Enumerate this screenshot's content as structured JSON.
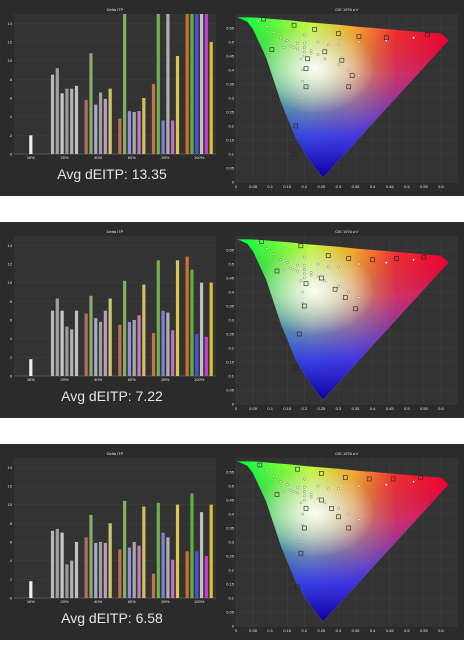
{
  "panels": [
    {
      "avg_label": "Avg dEITP: 13.35",
      "chart_data": [
        {
          "type": "bar",
          "title": "Delta ITP",
          "ylim": [
            0,
            15
          ],
          "yticks": [
            0,
            2,
            4,
            6,
            8,
            10,
            12,
            14
          ],
          "categories": [
            "16%",
            "20%",
            "40%",
            "60%",
            "80%",
            "100%"
          ],
          "groups": [
            {
              "label": "16%",
              "values": [
                2.0
              ]
            },
            {
              "label": "20%",
              "values": [
                8.5,
                9.2,
                6.5,
                7.0,
                7.0,
                7.3
              ]
            },
            {
              "label": "40%",
              "values": [
                5.8,
                10.8,
                5.3,
                6.6,
                5.9,
                7.0
              ]
            },
            {
              "label": "60%",
              "values": [
                3.8,
                16.0,
                4.6,
                4.5,
                4.6,
                6.0
              ]
            },
            {
              "label": "80%",
              "values": [
                7.5,
                16.0,
                3.6,
                16.0,
                3.6,
                10.5
              ]
            },
            {
              "label": "100%",
              "values": [
                16.0,
                16.0,
                16.0,
                16.0,
                16.0,
                12.0
              ]
            }
          ]
        },
        {
          "type": "scatter",
          "title": "CIE 1976 u'v'",
          "xlim": [
            0,
            0.65
          ],
          "ylim": [
            0,
            0.6
          ],
          "xticks": [
            "0",
            "0.05",
            "0.1",
            "0.15",
            "0.2",
            "0.25",
            "0.3",
            "0.35",
            "0.4",
            "0.45",
            "0.5",
            "0.55",
            "0.6"
          ],
          "yticks": [
            "0",
            "0.05",
            "0.1",
            "0.15",
            "0.2",
            "0.25",
            "0.3",
            "0.35",
            "0.4",
            "0.45",
            "0.5",
            "0.55"
          ],
          "targets": [
            [
              0.065,
              0.575
            ],
            [
              0.09,
              0.555
            ],
            [
              0.11,
              0.535
            ],
            [
              0.13,
              0.515
            ],
            [
              0.15,
              0.505
            ],
            [
              0.18,
              0.495
            ],
            [
              0.2,
              0.48
            ],
            [
              0.22,
              0.47
            ],
            [
              0.24,
              0.455
            ],
            [
              0.2,
              0.525
            ],
            [
              0.2,
              0.495
            ],
            [
              0.2,
              0.48
            ],
            [
              0.2,
              0.465
            ],
            [
              0.2,
              0.45
            ],
            [
              0.14,
              0.48
            ],
            [
              0.16,
              0.485
            ],
            [
              0.17,
              0.48
            ],
            [
              0.18,
              0.475
            ],
            [
              0.24,
              0.5
            ],
            [
              0.27,
              0.49
            ],
            [
              0.3,
              0.49
            ],
            [
              0.36,
              0.5
            ],
            [
              0.44,
              0.505
            ],
            [
              0.52,
              0.515
            ],
            [
              0.19,
              0.44
            ],
            [
              0.195,
              0.4
            ],
            [
              0.195,
              0.36
            ],
            [
              0.19,
              0.3
            ],
            [
              0.22,
              0.46
            ],
            [
              0.26,
              0.44
            ],
            [
              0.3,
              0.42
            ],
            [
              0.33,
              0.4
            ],
            [
              0.36,
              0.38
            ]
          ],
          "measured": [
            [
              0.08,
              0.582
            ],
            [
              0.17,
              0.56
            ],
            [
              0.23,
              0.545
            ],
            [
              0.3,
              0.53
            ],
            [
              0.36,
              0.52
            ],
            [
              0.44,
              0.515
            ],
            [
              0.56,
              0.525
            ],
            [
              0.105,
              0.473
            ],
            [
              0.21,
              0.44
            ],
            [
              0.205,
              0.405
            ],
            [
              0.205,
              0.34
            ],
            [
              0.175,
              0.2
            ],
            [
              0.17,
              0.1
            ],
            [
              0.26,
              0.465
            ],
            [
              0.31,
              0.435
            ],
            [
              0.34,
              0.38
            ],
            [
              0.33,
              0.34
            ]
          ]
        }
      ]
    },
    {
      "avg_label": "Avg dEITP: 7.22",
      "chart_data": [
        {
          "type": "bar",
          "title": "Delta ITP",
          "ylim": [
            0,
            15
          ],
          "yticks": [
            0,
            2,
            4,
            6,
            8,
            10,
            12,
            14
          ],
          "categories": [
            "16%",
            "20%",
            "40%",
            "60%",
            "80%",
            "100%"
          ],
          "groups": [
            {
              "label": "16%",
              "values": [
                1.8
              ]
            },
            {
              "label": "20%",
              "values": [
                7.0,
                8.3,
                7.0,
                5.3,
                5.0,
                7.0
              ]
            },
            {
              "label": "40%",
              "values": [
                6.7,
                8.6,
                6.2,
                5.8,
                7.0,
                8.3
              ]
            },
            {
              "label": "60%",
              "values": [
                5.5,
                10.2,
                5.8,
                6.0,
                6.5,
                9.8
              ]
            },
            {
              "label": "80%",
              "values": [
                4.6,
                12.4,
                7.0,
                6.8,
                4.9,
                12.4
              ]
            },
            {
              "label": "100%",
              "values": [
                12.8,
                11.4,
                4.5,
                10.0,
                4.2,
                10.0
              ]
            }
          ]
        },
        {
          "type": "scatter",
          "title": "CIE 1976 u'v'",
          "xlim": [
            0,
            0.65
          ],
          "ylim": [
            0,
            0.6
          ],
          "xticks": [
            "0",
            "0.05",
            "0.1",
            "0.15",
            "0.2",
            "0.25",
            "0.3",
            "0.35",
            "0.4",
            "0.45",
            "0.5",
            "0.55",
            "0.6"
          ],
          "yticks": [
            "0",
            "0.05",
            "0.1",
            "0.15",
            "0.2",
            "0.25",
            "0.3",
            "0.35",
            "0.4",
            "0.45",
            "0.5",
            "0.55"
          ],
          "targets": [
            [
              0.065,
              0.575
            ],
            [
              0.09,
              0.555
            ],
            [
              0.11,
              0.535
            ],
            [
              0.13,
              0.515
            ],
            [
              0.15,
              0.505
            ],
            [
              0.18,
              0.495
            ],
            [
              0.2,
              0.48
            ],
            [
              0.22,
              0.47
            ],
            [
              0.24,
              0.455
            ],
            [
              0.2,
              0.525
            ],
            [
              0.2,
              0.495
            ],
            [
              0.2,
              0.48
            ],
            [
              0.2,
              0.465
            ],
            [
              0.2,
              0.45
            ],
            [
              0.14,
              0.48
            ],
            [
              0.16,
              0.485
            ],
            [
              0.17,
              0.48
            ],
            [
              0.18,
              0.475
            ],
            [
              0.24,
              0.5
            ],
            [
              0.27,
              0.49
            ],
            [
              0.3,
              0.49
            ],
            [
              0.36,
              0.5
            ],
            [
              0.44,
              0.505
            ],
            [
              0.52,
              0.515
            ],
            [
              0.19,
              0.44
            ],
            [
              0.195,
              0.4
            ],
            [
              0.195,
              0.36
            ],
            [
              0.19,
              0.3
            ],
            [
              0.22,
              0.46
            ],
            [
              0.26,
              0.44
            ],
            [
              0.3,
              0.42
            ],
            [
              0.33,
              0.4
            ],
            [
              0.36,
              0.38
            ]
          ],
          "measured": [
            [
              0.075,
              0.58
            ],
            [
              0.19,
              0.565
            ],
            [
              0.27,
              0.53
            ],
            [
              0.33,
              0.52
            ],
            [
              0.4,
              0.515
            ],
            [
              0.47,
              0.52
            ],
            [
              0.55,
              0.525
            ],
            [
              0.12,
              0.475
            ],
            [
              0.205,
              0.43
            ],
            [
              0.2,
              0.35
            ],
            [
              0.185,
              0.25
            ],
            [
              0.175,
              0.13
            ],
            [
              0.25,
              0.45
            ],
            [
              0.29,
              0.41
            ],
            [
              0.32,
              0.38
            ],
            [
              0.35,
              0.34
            ]
          ]
        }
      ]
    },
    {
      "avg_label": "Avg dEITP: 6.58",
      "chart_data": [
        {
          "type": "bar",
          "title": "Delta ITP",
          "ylim": [
            0,
            15
          ],
          "yticks": [
            0,
            2,
            4,
            6,
            8,
            10,
            12,
            14
          ],
          "categories": [
            "16%",
            "20%",
            "40%",
            "60%",
            "80%",
            "100%"
          ],
          "groups": [
            {
              "label": "16%",
              "values": [
                1.8
              ]
            },
            {
              "label": "20%",
              "values": [
                7.2,
                7.4,
                7.0,
                3.6,
                4.0,
                6.0
              ]
            },
            {
              "label": "40%",
              "values": [
                6.5,
                8.9,
                5.9,
                6.0,
                5.9,
                8.0
              ]
            },
            {
              "label": "60%",
              "values": [
                5.2,
                10.4,
                5.4,
                6.0,
                5.6,
                9.8
              ]
            },
            {
              "label": "80%",
              "values": [
                2.6,
                10.2,
                7.0,
                6.5,
                4.1,
                10.0
              ]
            },
            {
              "label": "100%",
              "values": [
                5.0,
                11.2,
                5.0,
                9.2,
                4.5,
                10.0
              ]
            }
          ]
        },
        {
          "type": "scatter",
          "title": "CIE 1976 u'v'",
          "xlim": [
            0,
            0.65
          ],
          "ylim": [
            0,
            0.6
          ],
          "xticks": [
            "0",
            "0.05",
            "0.1",
            "0.15",
            "0.2",
            "0.25",
            "0.3",
            "0.35",
            "0.4",
            "0.45",
            "0.5",
            "0.55",
            "0.6"
          ],
          "yticks": [
            "0",
            "0.05",
            "0.1",
            "0.15",
            "0.2",
            "0.25",
            "0.3",
            "0.35",
            "0.4",
            "0.45",
            "0.5",
            "0.55"
          ],
          "targets": [
            [
              0.065,
              0.575
            ],
            [
              0.09,
              0.555
            ],
            [
              0.11,
              0.535
            ],
            [
              0.13,
              0.515
            ],
            [
              0.15,
              0.505
            ],
            [
              0.18,
              0.495
            ],
            [
              0.2,
              0.48
            ],
            [
              0.22,
              0.47
            ],
            [
              0.24,
              0.455
            ],
            [
              0.2,
              0.525
            ],
            [
              0.2,
              0.495
            ],
            [
              0.2,
              0.48
            ],
            [
              0.2,
              0.465
            ],
            [
              0.2,
              0.45
            ],
            [
              0.14,
              0.48
            ],
            [
              0.16,
              0.485
            ],
            [
              0.17,
              0.48
            ],
            [
              0.18,
              0.475
            ],
            [
              0.24,
              0.5
            ],
            [
              0.27,
              0.49
            ],
            [
              0.3,
              0.49
            ],
            [
              0.36,
              0.5
            ],
            [
              0.44,
              0.505
            ],
            [
              0.52,
              0.515
            ],
            [
              0.19,
              0.44
            ],
            [
              0.195,
              0.4
            ],
            [
              0.195,
              0.36
            ],
            [
              0.19,
              0.3
            ],
            [
              0.22,
              0.46
            ],
            [
              0.26,
              0.44
            ],
            [
              0.3,
              0.42
            ],
            [
              0.33,
              0.4
            ],
            [
              0.36,
              0.38
            ]
          ],
          "measured": [
            [
              0.07,
              0.575
            ],
            [
              0.18,
              0.56
            ],
            [
              0.25,
              0.545
            ],
            [
              0.32,
              0.53
            ],
            [
              0.39,
              0.525
            ],
            [
              0.46,
              0.525
            ],
            [
              0.54,
              0.53
            ],
            [
              0.12,
              0.47
            ],
            [
              0.205,
              0.42
            ],
            [
              0.2,
              0.35
            ],
            [
              0.19,
              0.26
            ],
            [
              0.18,
              0.14
            ],
            [
              0.25,
              0.45
            ],
            [
              0.28,
              0.42
            ],
            [
              0.3,
              0.39
            ],
            [
              0.33,
              0.35
            ]
          ]
        }
      ]
    }
  ],
  "colors": {
    "background": "#2b2b2b",
    "plot_bg": "#333333",
    "text": "#e6e6e6",
    "bar_groups": [
      [
        "#eeeeee"
      ],
      [
        "#b8b8b8",
        "#a0a0a0",
        "#c8c8c8",
        "#9a9a9a",
        "#b0b0b0",
        "#c0c0c0"
      ],
      [
        "#b07060",
        "#8caa68",
        "#a8aac8",
        "#a0a0a0",
        "#c09ac0",
        "#c8c870"
      ],
      [
        "#b87050",
        "#80b060",
        "#9090d0",
        "#a8a8a8",
        "#c080c0",
        "#d0c060"
      ],
      [
        "#c07848",
        "#70b050",
        "#8080d8",
        "#b0b0b0",
        "#c070c8",
        "#d8c850"
      ],
      [
        "#d07030",
        "#60b040",
        "#5050e0",
        "#c0c0c0",
        "#c040d0",
        "#e0c030"
      ]
    ],
    "target_marker": "#ffffff",
    "measured_marker": "#222222"
  }
}
